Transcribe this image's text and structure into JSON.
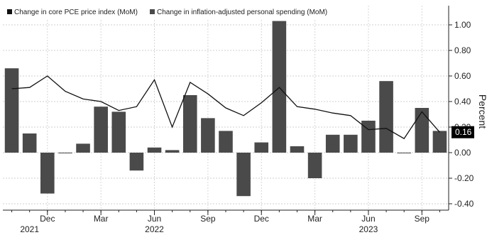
{
  "chart_data": {
    "type": "bar",
    "legend": {
      "line_label": "Change in core PCE price index (MoM)",
      "bar_label": "Change in inflation-adjusted personal spending (MoM)",
      "placement": "top-left"
    },
    "ylabel": "Percent",
    "ylim": [
      -0.45,
      1.15
    ],
    "yticks": [
      1.0,
      0.8,
      0.6,
      0.4,
      0.2,
      0.0,
      -0.2,
      -0.4
    ],
    "ytick_labels": [
      "1.00",
      "0.80",
      "0.60",
      "0.40",
      "0.20",
      "0.00",
      "-0.20",
      "-0.40"
    ],
    "x": [
      "2021-10",
      "2021-11",
      "2021-12",
      "2022-01",
      "2022-02",
      "2022-03",
      "2022-04",
      "2022-05",
      "2022-06",
      "2022-07",
      "2022-08",
      "2022-09",
      "2022-10",
      "2022-11",
      "2022-12",
      "2023-01",
      "2023-02",
      "2023-03",
      "2023-04",
      "2023-05",
      "2023-06",
      "2023-07",
      "2023-08",
      "2023-09",
      "2023-10"
    ],
    "month_ticks": [
      {
        "label": "Dec",
        "index": 2
      },
      {
        "label": "Mar",
        "index": 5
      },
      {
        "label": "Jun",
        "index": 8
      },
      {
        "label": "Sep",
        "index": 11
      },
      {
        "label": "Dec",
        "index": 14
      },
      {
        "label": "Mar",
        "index": 17
      },
      {
        "label": "Jun",
        "index": 20
      },
      {
        "label": "Sep",
        "index": 23
      }
    ],
    "year_ticks": [
      {
        "label": "2021",
        "index": 1
      },
      {
        "label": "2022",
        "index": 8
      },
      {
        "label": "2023",
        "index": 20
      }
    ],
    "series": [
      {
        "name": "Change in inflation-adjusted personal spending (MoM)",
        "kind": "bar",
        "color": "#4a4a4a",
        "values": [
          0.66,
          0.15,
          -0.32,
          0.0,
          0.07,
          0.36,
          0.32,
          -0.14,
          0.04,
          0.02,
          0.45,
          0.27,
          0.17,
          -0.34,
          0.08,
          1.03,
          0.05,
          -0.2,
          0.14,
          0.14,
          0.25,
          0.56,
          0.0,
          0.35,
          0.17
        ]
      },
      {
        "name": "Change in core PCE price index (MoM)",
        "kind": "line",
        "color": "#111111",
        "values": [
          0.5,
          0.51,
          0.6,
          0.48,
          0.42,
          0.4,
          0.33,
          0.36,
          0.57,
          0.2,
          0.55,
          0.46,
          0.35,
          0.29,
          0.39,
          0.51,
          0.36,
          0.34,
          0.31,
          0.29,
          0.18,
          0.19,
          0.11,
          0.32,
          0.16
        ]
      }
    ],
    "last_value_label": "0.16",
    "grid": true
  }
}
